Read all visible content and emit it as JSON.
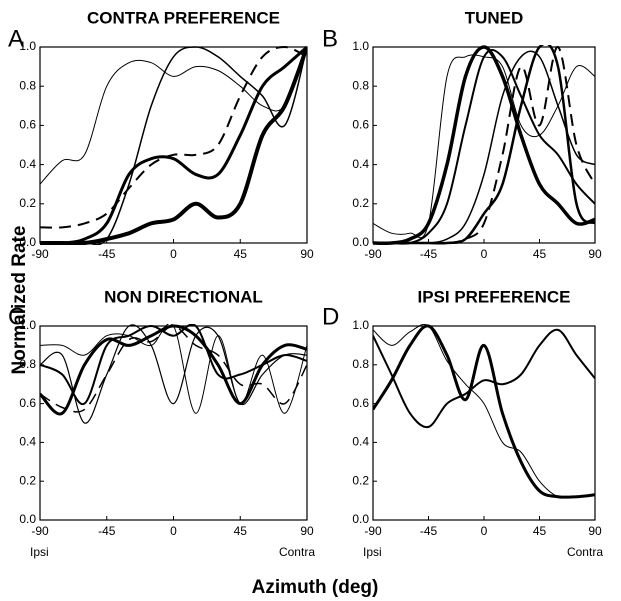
{
  "ylabel": "Normalized Rate",
  "xlabel": "Azimuth (deg)",
  "chart_data": [
    {
      "type": "line",
      "label": "A",
      "title": "CONTRA PREFERENCE",
      "x": [
        -90,
        -75,
        -60,
        -45,
        -30,
        -15,
        0,
        15,
        30,
        45,
        60,
        75,
        90
      ],
      "xlim": [
        -90,
        90
      ],
      "xticks": [
        -90,
        -45,
        0,
        45,
        90
      ],
      "ylim": [
        0,
        1
      ],
      "yticks": [
        {
          "value": 0,
          "label": "0.0"
        },
        {
          "value": 0.2,
          "label": "0.2"
        },
        {
          "value": 0.4,
          "label": "0.4"
        },
        {
          "value": 0.6,
          "label": "0.6"
        },
        {
          "value": 0.8,
          "label": "0.8"
        },
        {
          "value": 1,
          "label": "1.0"
        }
      ],
      "series": [
        {
          "color": "#000",
          "width": 1,
          "values": [
            0.3,
            0.42,
            0.45,
            0.8,
            0.92,
            0.92,
            0.85,
            0.9,
            0.88,
            0.8,
            0.7,
            0.7,
            1.0
          ]
        },
        {
          "color": "#000",
          "width": 1.5,
          "values": [
            0,
            0,
            0,
            0.02,
            0.3,
            0.7,
            0.95,
            1.0,
            0.95,
            0.85,
            0.75,
            0.6,
            1.0
          ]
        },
        {
          "color": "#000",
          "width": 2,
          "dash": true,
          "values": [
            0.08,
            0.08,
            0.1,
            0.15,
            0.28,
            0.4,
            0.45,
            0.45,
            0.5,
            0.75,
            0.95,
            1.0,
            0.95
          ]
        },
        {
          "color": "#000",
          "width": 3,
          "values": [
            0,
            0,
            0.02,
            0.1,
            0.35,
            0.43,
            0.43,
            0.35,
            0.35,
            0.55,
            0.8,
            0.9,
            1.0
          ]
        },
        {
          "color": "#000",
          "width": 4,
          "values": [
            0,
            0,
            0,
            0.02,
            0.05,
            0.1,
            0.12,
            0.2,
            0.13,
            0.2,
            0.55,
            0.7,
            1.0
          ]
        }
      ]
    },
    {
      "type": "line",
      "label": "B",
      "title": "TUNED",
      "x": [
        -90,
        -75,
        -60,
        -45,
        -30,
        -15,
        0,
        15,
        30,
        45,
        60,
        75,
        90
      ],
      "xlim": [
        -90,
        90
      ],
      "xticks": [
        -90,
        -45,
        0,
        45,
        90
      ],
      "ylim": [
        0,
        1
      ],
      "yticks": [
        {
          "value": 0,
          "label": "0.0"
        },
        {
          "value": 0.2,
          "label": "0.2"
        },
        {
          "value": 0.4,
          "label": "0.4"
        },
        {
          "value": 0.6,
          "label": "0.6"
        },
        {
          "value": 0.8,
          "label": "0.8"
        },
        {
          "value": 1,
          "label": "1.0"
        }
      ],
      "series": [
        {
          "color": "#000",
          "width": 1,
          "values": [
            0.1,
            0.05,
            0.05,
            0.1,
            0.85,
            0.95,
            0.95,
            0.9,
            0.6,
            0.55,
            0.7,
            0.9,
            0.85
          ]
        },
        {
          "color": "#000",
          "width": 3.5,
          "values": [
            0,
            0,
            0.02,
            0.1,
            0.4,
            0.85,
            1.0,
            0.85,
            0.55,
            0.3,
            0.2,
            0.1,
            0.12
          ]
        },
        {
          "color": "#000",
          "width": 2,
          "values": [
            0,
            0,
            0,
            0.05,
            0.2,
            0.6,
            0.95,
            0.95,
            0.75,
            0.55,
            0.45,
            0.3,
            0.2
          ]
        },
        {
          "color": "#000",
          "width": 1.5,
          "values": [
            0,
            0,
            0,
            0,
            0.02,
            0.1,
            0.35,
            0.75,
            0.95,
            0.95,
            0.7,
            0.45,
            0.4
          ]
        },
        {
          "color": "#000",
          "width": 2,
          "dash": true,
          "values": [
            0,
            0,
            0,
            0,
            0,
            0.02,
            0.1,
            0.45,
            0.9,
            0.6,
            1.0,
            0.5,
            0.3
          ]
        },
        {
          "color": "#000",
          "width": 2.5,
          "values": [
            0,
            0,
            0,
            0,
            0,
            0.02,
            0.15,
            0.3,
            0.7,
            1.0,
            0.9,
            0.2,
            0.1
          ]
        }
      ]
    },
    {
      "type": "line",
      "label": "C",
      "title": "NON DIRECTIONAL",
      "x_end_labels": [
        "Ipsi",
        "Contra"
      ],
      "x": [
        -90,
        -75,
        -60,
        -45,
        -30,
        -15,
        0,
        15,
        30,
        45,
        60,
        75,
        90
      ],
      "xlim": [
        -90,
        90
      ],
      "xticks": [
        -90,
        -45,
        0,
        45,
        90
      ],
      "ylim": [
        0,
        1
      ],
      "yticks": [
        {
          "value": 0,
          "label": "0.0"
        },
        {
          "value": 0.2,
          "label": "0.2"
        },
        {
          "value": 0.4,
          "label": "0.4"
        },
        {
          "value": 0.6,
          "label": "0.6"
        },
        {
          "value": 0.8,
          "label": "0.8"
        },
        {
          "value": 1,
          "label": "1.0"
        }
      ],
      "series": [
        {
          "color": "#000",
          "width": 1,
          "values": [
            0.9,
            0.9,
            0.85,
            0.95,
            0.95,
            0.9,
            1.0,
            0.55,
            0.95,
            0.6,
            0.85,
            0.55,
            0.9
          ]
        },
        {
          "color": "#000",
          "width": 3,
          "values": [
            0.65,
            0.55,
            0.8,
            0.93,
            0.9,
            0.95,
            1.0,
            0.95,
            0.8,
            0.6,
            0.8,
            0.9,
            0.88
          ]
        },
        {
          "color": "#000",
          "width": 1.5,
          "dash": true,
          "values": [
            0.65,
            0.58,
            0.57,
            0.75,
            0.93,
            0.92,
            1.0,
            0.9,
            0.85,
            0.7,
            0.7,
            0.6,
            0.8
          ]
        },
        {
          "color": "#000",
          "width": 2,
          "values": [
            0.8,
            0.75,
            0.6,
            0.9,
            0.95,
            1.0,
            0.95,
            1.0,
            0.75,
            0.75,
            0.8,
            0.85,
            0.82
          ]
        },
        {
          "color": "#000",
          "width": 1.2,
          "values": [
            0.8,
            0.85,
            0.5,
            0.75,
            1.0,
            0.9,
            0.6,
            0.95,
            0.95,
            0.6,
            0.75,
            0.85,
            0.85
          ]
        }
      ]
    },
    {
      "type": "line",
      "label": "D",
      "title": "IPSI PREFERENCE",
      "x_end_labels": [
        "Ipsi",
        "Contra"
      ],
      "x": [
        -90,
        -75,
        -60,
        -45,
        -30,
        -15,
        0,
        15,
        30,
        45,
        60,
        75,
        90
      ],
      "xlim": [
        -90,
        90
      ],
      "xticks": [
        -90,
        -45,
        0,
        45,
        90
      ],
      "ylim": [
        0,
        1
      ],
      "yticks": [
        {
          "value": 0,
          "label": "0.0"
        },
        {
          "value": 0.2,
          "label": "0.2"
        },
        {
          "value": 0.4,
          "label": "0.4"
        },
        {
          "value": 0.6,
          "label": "0.6"
        },
        {
          "value": 0.8,
          "label": "0.8"
        },
        {
          "value": 1,
          "label": "1.0"
        }
      ],
      "series": [
        {
          "color": "#000",
          "width": 3,
          "values": [
            0.57,
            0.72,
            0.9,
            1.0,
            0.85,
            0.62,
            0.9,
            0.55,
            0.3,
            0.15,
            0.12,
            0.12,
            0.13
          ]
        },
        {
          "color": "#000",
          "width": 2,
          "values": [
            0.95,
            0.75,
            0.55,
            0.48,
            0.6,
            0.65,
            0.72,
            0.7,
            0.75,
            0.9,
            0.98,
            0.85,
            0.73
          ]
        },
        {
          "color": "#000",
          "width": 1,
          "values": [
            0.98,
            0.9,
            0.97,
            1.0,
            0.82,
            0.7,
            0.6,
            0.4,
            0.35,
            0.2,
            0.12,
            0.12,
            0.13
          ]
        }
      ]
    }
  ]
}
